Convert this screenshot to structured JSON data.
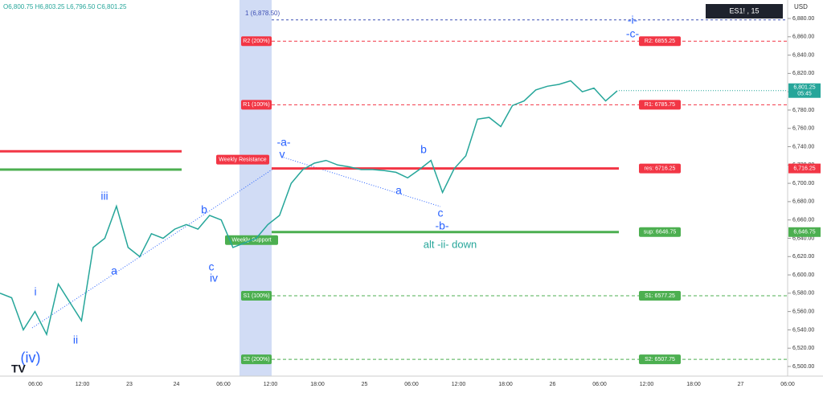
{
  "chart_data": {
    "type": "line",
    "header": "O6,800.75 H6,803.25 L6,796.50 C6,801.25",
    "symbol": "ES1! , 15",
    "currency": "USD",
    "ylim": [
      6500,
      6880
    ],
    "yticks": [
      {
        "value": 6500,
        "label": "6,500.00"
      },
      {
        "value": 6520,
        "label": "6,520.00"
      },
      {
        "value": 6540,
        "label": "6,540.00"
      },
      {
        "value": 6560,
        "label": "6,560.00"
      },
      {
        "value": 6580,
        "label": "6,580.00"
      },
      {
        "value": 6600,
        "label": "6,600.00"
      },
      {
        "value": 6620,
        "label": "6,620.00"
      },
      {
        "value": 6640,
        "label": "6,640.00"
      },
      {
        "value": 6660,
        "label": "6,660.00"
      },
      {
        "value": 6680,
        "label": "6,680.00"
      },
      {
        "value": 6700,
        "label": "6,700.00"
      },
      {
        "value": 6720,
        "label": "6,720.00"
      },
      {
        "value": 6740,
        "label": "6,740.00"
      },
      {
        "value": 6760,
        "label": "6,760.00"
      },
      {
        "value": 6780,
        "label": "6,780.00"
      },
      {
        "value": 6800,
        "label": "6,800.00"
      },
      {
        "value": 6820,
        "label": "6,820.00"
      },
      {
        "value": 6840,
        "label": "6,840.00"
      },
      {
        "value": 6860,
        "label": "6,860.00"
      },
      {
        "value": 6880,
        "label": "6,880.00"
      }
    ],
    "xticks": [
      "06:00",
      "12:00",
      "23",
      "24",
      "06:00",
      "12:00",
      "18:00",
      "25",
      "06:00",
      "12:00",
      "18:00",
      "26",
      "06:00",
      "12:00",
      "18:00",
      "27",
      "06:00"
    ],
    "series": [
      {
        "name": "ES1!",
        "color": "#26a69a",
        "values": [
          6580,
          6575,
          6540,
          6560,
          6535,
          6590,
          6570,
          6550,
          6630,
          6640,
          6675,
          6630,
          6620,
          6645,
          6640,
          6650,
          6655,
          6650,
          6665,
          6660,
          6630,
          6635,
          6640,
          6655,
          6665,
          6700,
          6715,
          6722,
          6725,
          6720,
          6718,
          6715,
          6715,
          6714,
          6712,
          6706,
          6715,
          6725,
          6690,
          6716,
          6730,
          6770,
          6772,
          6762,
          6785,
          6790,
          6802,
          6806,
          6808,
          6812,
          6800,
          6804,
          6790,
          6801
        ]
      }
    ],
    "last": {
      "value": 6801.25,
      "label": "6,801.25",
      "time": "05:45"
    },
    "top_level": {
      "value": 6878.5,
      "label": "1 (6,878.50)"
    },
    "levels": [
      {
        "name": "R2 (200%)",
        "label": "R2: 6855.25",
        "value": 6855.25,
        "color": "#f23645",
        "style": "dashed"
      },
      {
        "name": "R1 (100%)",
        "label": "R1: 6785.75",
        "value": 6785.75,
        "color": "#f23645",
        "style": "dashed"
      },
      {
        "name": "Weekly Resistance",
        "label": "res: 6716.25",
        "value": 6716.25,
        "axis_label": "6,716.25",
        "color": "#f23645",
        "style": "solid"
      },
      {
        "name": "Weekly Support",
        "label": "sup: 6646.75",
        "value": 6646.75,
        "axis_label": "6,646.75",
        "color": "#4caf50",
        "style": "solid"
      },
      {
        "name": "S1 (100%)",
        "label": "S1: 6577.25",
        "value": 6577.25,
        "color": "#4caf50",
        "style": "dashed"
      },
      {
        "name": "S2 (200%)",
        "label": "S2: 6507.75",
        "value": 6507.75,
        "color": "#4caf50",
        "style": "dashed"
      }
    ],
    "left_levels": [
      {
        "value": 6735,
        "color": "#f23645"
      },
      {
        "value": 6715,
        "color": "#4caf50"
      }
    ],
    "annotations": [
      "(iv)",
      "i",
      "ii",
      "iii",
      "a",
      "b",
      "c",
      "iv",
      "-a-",
      "v",
      "a",
      "b",
      "c",
      "-b-",
      "alt -ii- down",
      "-i-",
      "-c-"
    ]
  }
}
